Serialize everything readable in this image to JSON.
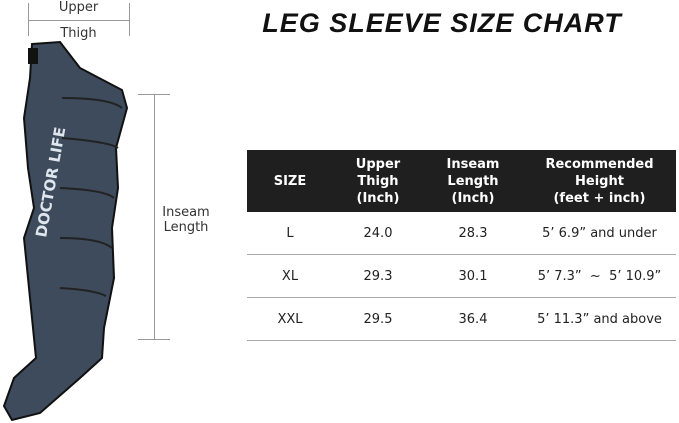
{
  "title": "LEG SLEEVE SIZE CHART",
  "diagram": {
    "upper_thigh_label_1": "Upper",
    "upper_thigh_label_2": "Thigh",
    "inseam_label_1": "Inseam",
    "inseam_label_2": "Length",
    "logo_text": "DOCTOR LIFE",
    "sleeve_color": "#3d4b5c"
  },
  "table": {
    "headers": [
      {
        "l1": "SIZE",
        "l2": "",
        "l3": ""
      },
      {
        "l1": "Upper",
        "l2": "Thigh",
        "l3": "(Inch)"
      },
      {
        "l1": "Inseam",
        "l2": "Length",
        "l3": "(Inch)"
      },
      {
        "l1": "Recommended",
        "l2": "Height",
        "l3": "(feet + inch)"
      }
    ],
    "rows": [
      [
        "L",
        "24.0",
        "28.3",
        "5’ 6.9” and under"
      ],
      [
        "XL",
        "29.3",
        "30.1",
        "5’ 7.3”  ~  5’ 10.9”"
      ],
      [
        "XXL",
        "29.5",
        "36.4",
        "5’ 11.3” and above"
      ]
    ]
  }
}
